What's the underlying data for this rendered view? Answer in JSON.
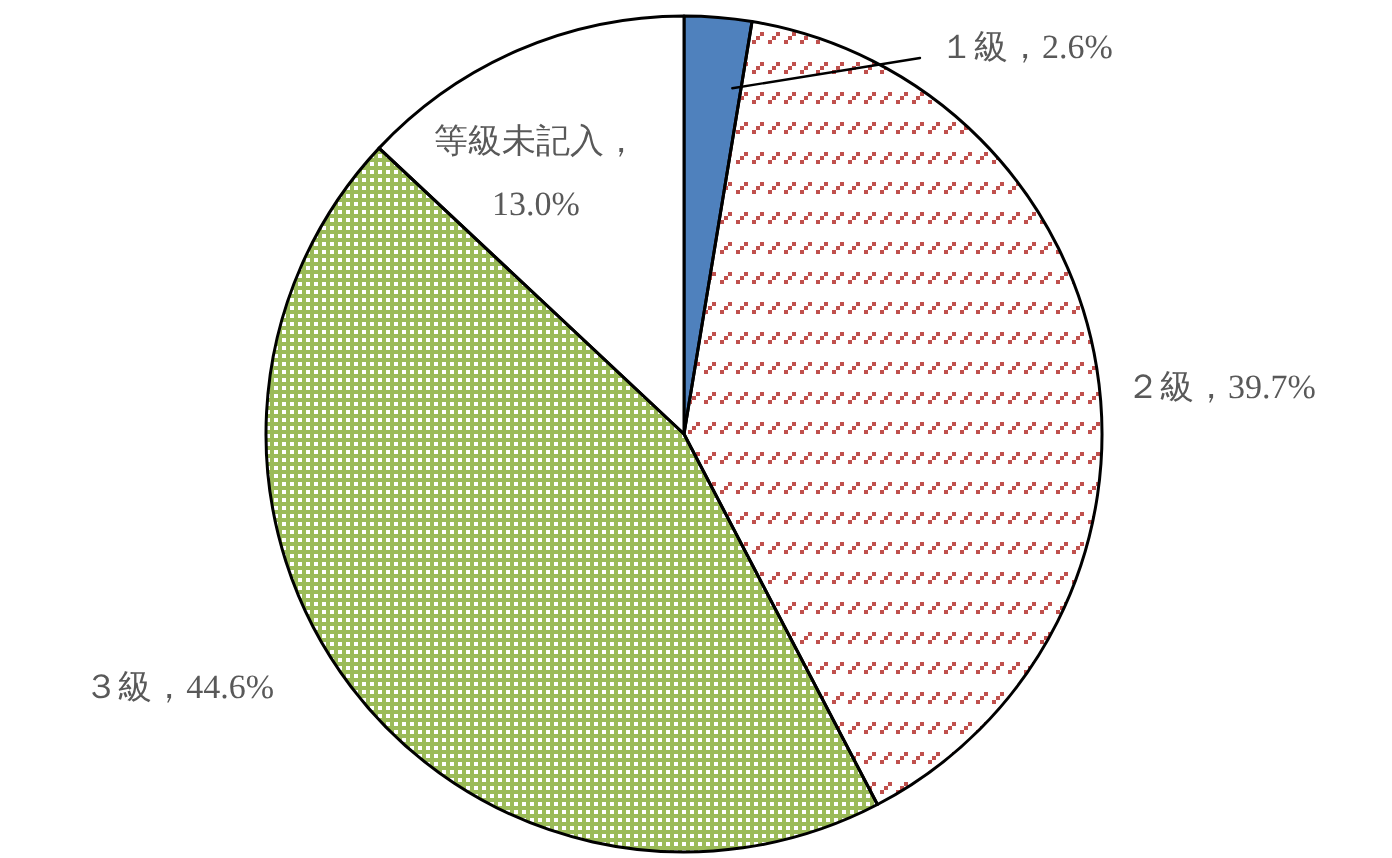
{
  "chart_data": {
    "type": "pie",
    "categories": [
      "１級",
      "２級",
      "３級",
      "等級未記入"
    ],
    "values": [
      2.6,
      39.7,
      44.6,
      13.0
    ],
    "colors": [
      "#4f81bd",
      "#c0504d",
      "#9bbb59",
      "#ffffff"
    ],
    "value_labels": [
      "，2.6%",
      "，39.7%",
      "，44.6%",
      "，13.0%"
    ]
  }
}
